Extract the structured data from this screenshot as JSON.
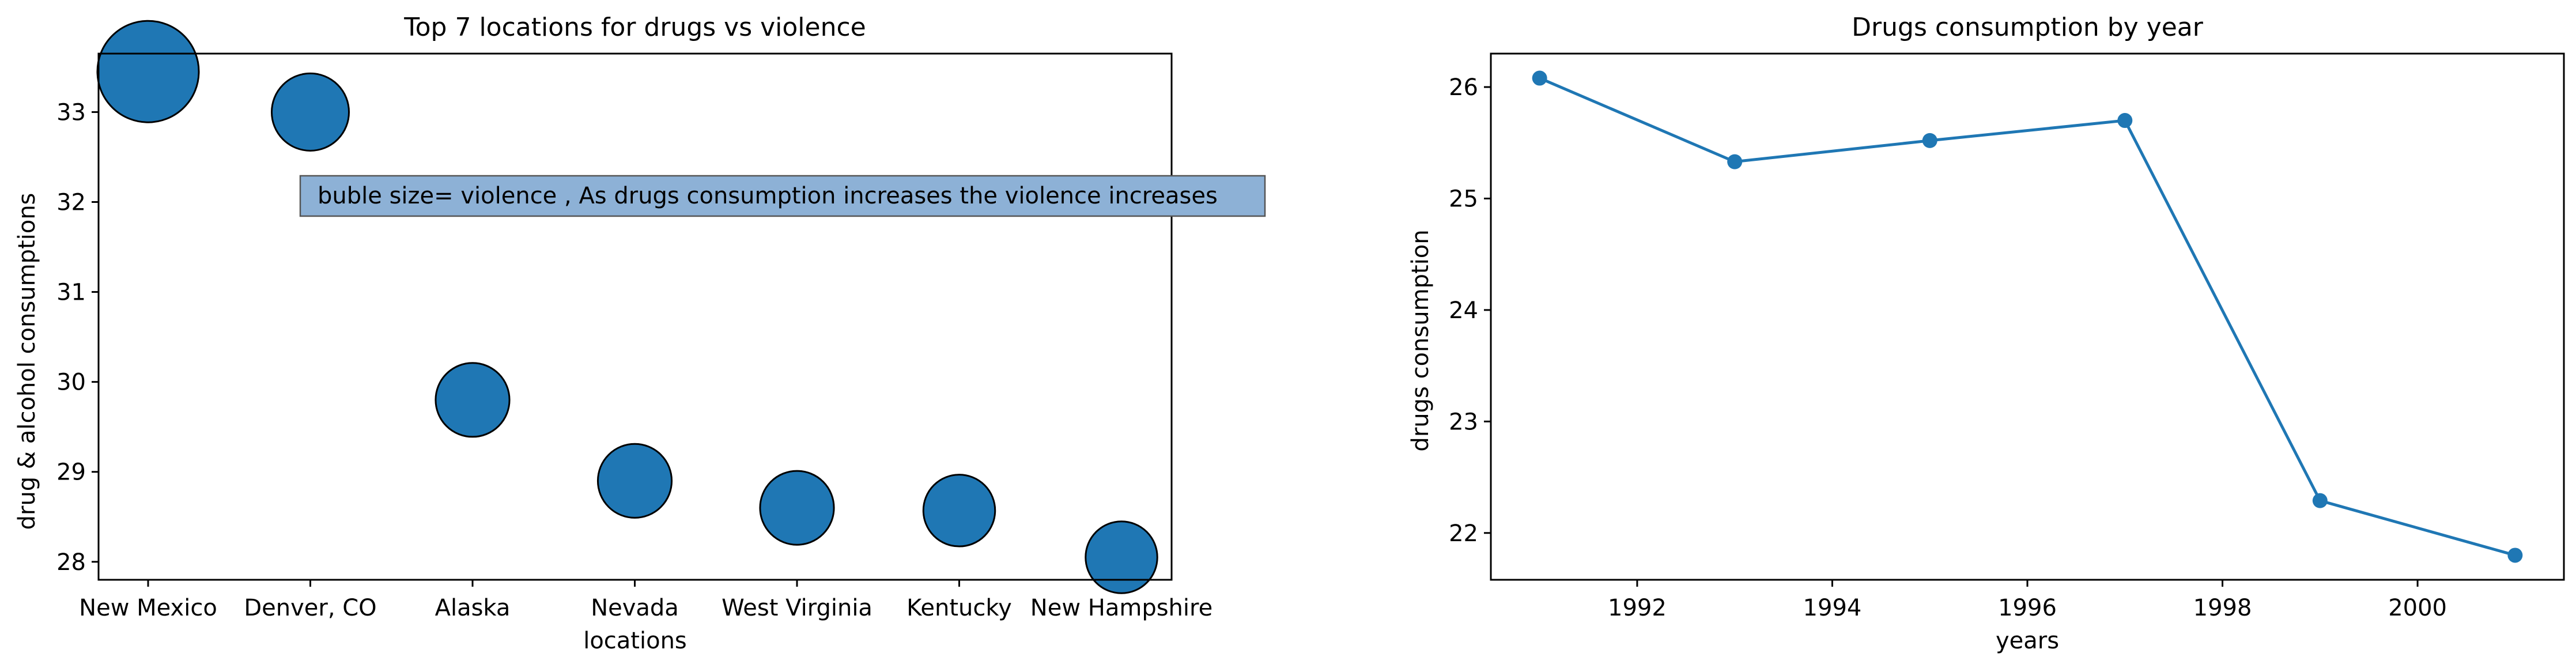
{
  "chart_data": [
    {
      "type": "scatter",
      "title": "Top 7 locations for drugs vs violence",
      "xlabel": "locations",
      "ylabel": "drug & alcohol consumptions",
      "categories": [
        "New Mexico",
        "Denver, CO",
        "Alaska",
        "Nevada",
        "West Virginia",
        "Kentucky",
        "New Hampshire"
      ],
      "values": [
        33.45,
        33.0,
        29.8,
        28.9,
        28.6,
        28.57,
        28.05
      ],
      "bubble_size_relative": [
        1.0,
        0.58,
        0.53,
        0.53,
        0.53,
        0.5,
        0.5
      ],
      "yticks": [
        28,
        29,
        30,
        31,
        32,
        33
      ],
      "ylim": [
        27.8,
        33.65
      ],
      "annotation": "buble size= violence , As drugs consumption increases the violence increases",
      "color": "#1f77b4",
      "grid": false
    },
    {
      "type": "line",
      "title": "Drugs consumption by year",
      "xlabel": "years",
      "ylabel": "drugs consumption",
      "x": [
        1991,
        1993,
        1995,
        1997,
        1999,
        2001
      ],
      "y": [
        26.08,
        25.33,
        25.52,
        25.7,
        22.29,
        21.8
      ],
      "xticks": [
        1992,
        1994,
        1996,
        1998,
        2000
      ],
      "yticks": [
        22,
        23,
        24,
        25,
        26
      ],
      "xlim": [
        1990.5,
        2001.5
      ],
      "ylim": [
        21.58,
        26.3
      ],
      "marker": "circle",
      "color": "#1f77b4",
      "grid": false
    }
  ]
}
